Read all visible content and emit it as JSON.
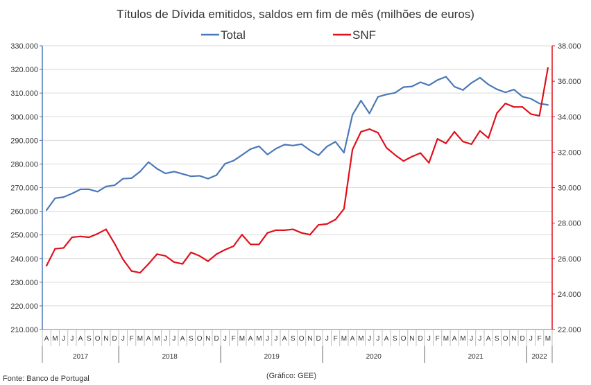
{
  "chart_data": {
    "type": "line",
    "title": "Títulos de Dívida emitidos, saldos em fim de mês  (milhões de euros)",
    "x": [
      "A",
      "M",
      "J",
      "J",
      "A",
      "S",
      "O",
      "N",
      "D",
      "J",
      "F",
      "M",
      "A",
      "M",
      "J",
      "J",
      "A",
      "S",
      "O",
      "N",
      "D",
      "J",
      "F",
      "M",
      "A",
      "M",
      "J",
      "J",
      "A",
      "S",
      "O",
      "N",
      "D",
      "J",
      "F",
      "M",
      "A",
      "M",
      "J",
      "J",
      "A",
      "S",
      "O",
      "N",
      "D",
      "J",
      "F",
      "M",
      "A",
      "M",
      "J",
      "J",
      "A",
      "S",
      "O",
      "N",
      "D",
      "J",
      "F",
      "M"
    ],
    "years": [
      {
        "label": "2017",
        "start": 0,
        "end": 8
      },
      {
        "label": "2018",
        "start": 9,
        "end": 20
      },
      {
        "label": "2019",
        "start": 21,
        "end": 32
      },
      {
        "label": "2020",
        "start": 33,
        "end": 44
      },
      {
        "label": "2021",
        "start": 45,
        "end": 56
      },
      {
        "label": "2022",
        "start": 57,
        "end": 59
      }
    ],
    "y_left": {
      "ylim": [
        210000,
        330000
      ],
      "ticks": [
        210000,
        220000,
        230000,
        240000,
        250000,
        260000,
        270000,
        280000,
        290000,
        300000,
        310000,
        320000,
        330000
      ],
      "tick_labels": [
        "210.000",
        "220.000",
        "230.000",
        "240.000",
        "250.000",
        "260.000",
        "270.000",
        "280.000",
        "290.000",
        "300.000",
        "310.000",
        "320.000",
        "330.000"
      ]
    },
    "y_right": {
      "ylim": [
        22000,
        38000
      ],
      "ticks": [
        22000,
        24000,
        26000,
        28000,
        30000,
        32000,
        34000,
        36000,
        38000
      ],
      "tick_labels": [
        "22.000",
        "24.000",
        "26.000",
        "28.000",
        "30.000",
        "32.000",
        "34.000",
        "36.000",
        "38.000"
      ]
    },
    "grid": "horizontal",
    "legend": "top",
    "series": [
      {
        "name": "Total",
        "axis": "left",
        "color": "#4a78b8",
        "values": [
          260500,
          265500,
          266000,
          267500,
          269300,
          269300,
          268300,
          270500,
          271000,
          273800,
          274000,
          276800,
          280800,
          278000,
          276000,
          276800,
          275800,
          274800,
          275000,
          273800,
          275300,
          280100,
          281400,
          283800,
          286300,
          287500,
          284000,
          286500,
          288200,
          287800,
          288400,
          285800,
          283700,
          287400,
          289400,
          284800,
          300800,
          306800,
          301400,
          308400,
          309400,
          310100,
          312500,
          312800,
          314600,
          313300,
          315500,
          316900,
          312700,
          311300,
          314300,
          316500,
          313600,
          311600,
          310300,
          311500,
          308500,
          307600,
          305600,
          305000
        ]
      },
      {
        "name": "SNF",
        "axis": "right",
        "color": "#e0101b",
        "values": [
          25600,
          26550,
          26600,
          27200,
          27250,
          27200,
          27400,
          27650,
          26850,
          25950,
          25300,
          25200,
          25700,
          26250,
          26150,
          25800,
          25700,
          26350,
          26150,
          25850,
          26250,
          26500,
          26700,
          27350,
          26800,
          26800,
          27450,
          27600,
          27600,
          27650,
          27450,
          27350,
          27900,
          27950,
          28200,
          28800,
          32150,
          33150,
          33300,
          33100,
          32250,
          31850,
          31500,
          31750,
          31950,
          31400,
          32750,
          32500,
          33150,
          32600,
          32450,
          33200,
          32800,
          34200,
          34750,
          34550,
          34550,
          34150,
          34050,
          36750
        ]
      }
    ],
    "footer_left": "Fonte: Banco de Portugal",
    "footer_center": "(Gráfico: GEE)"
  }
}
